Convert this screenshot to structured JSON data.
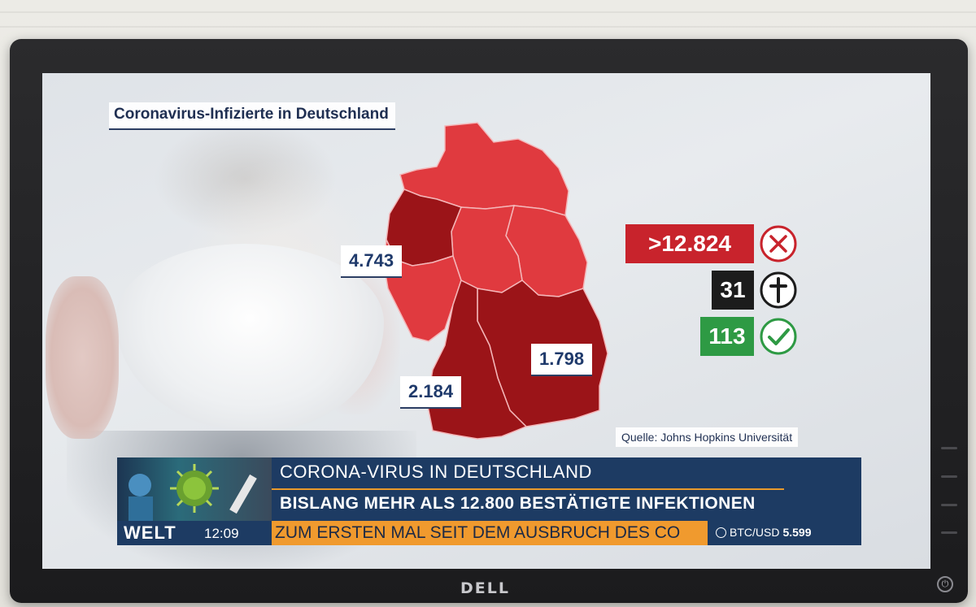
{
  "map": {
    "title": "Coronavirus-Infizierte in Deutschland",
    "callouts": [
      {
        "id": "nrw",
        "value": "4.743"
      },
      {
        "id": "bayern",
        "value": "1.798"
      },
      {
        "id": "bw",
        "value": "2.184"
      }
    ],
    "source": "Quelle: Johns Hopkins Universität"
  },
  "stats": {
    "infected": {
      "value": ">12.824",
      "color": "#c8232c",
      "icon": "x-circle-icon"
    },
    "deaths": {
      "value": "31",
      "color": "#1c1c1c",
      "icon": "cross-icon"
    },
    "recovered": {
      "value": "113",
      "color": "#2e9a44",
      "icon": "checkmark-circle-icon"
    }
  },
  "ticker": {
    "headline_top": "CORONA-VIRUS IN DEUTSCHLAND",
    "headline_bottom": "BISLANG MEHR ALS 12.800 BESTÄTIGTE INFEKTIONEN",
    "channel": "WELT",
    "time": "12:09",
    "crawl": "ZUM ERSTEN MAL SEIT DEM AUSBRUCH DES CO",
    "btc_label": "BTC/USD",
    "btc_value": "5.599"
  },
  "monitor": {
    "brand": "DELL"
  },
  "colors": {
    "map_light": "#e03a3f",
    "map_dark": "#9b1418",
    "ticker_blue": "#1d3b63",
    "crawl_orange": "#f09a2e"
  }
}
